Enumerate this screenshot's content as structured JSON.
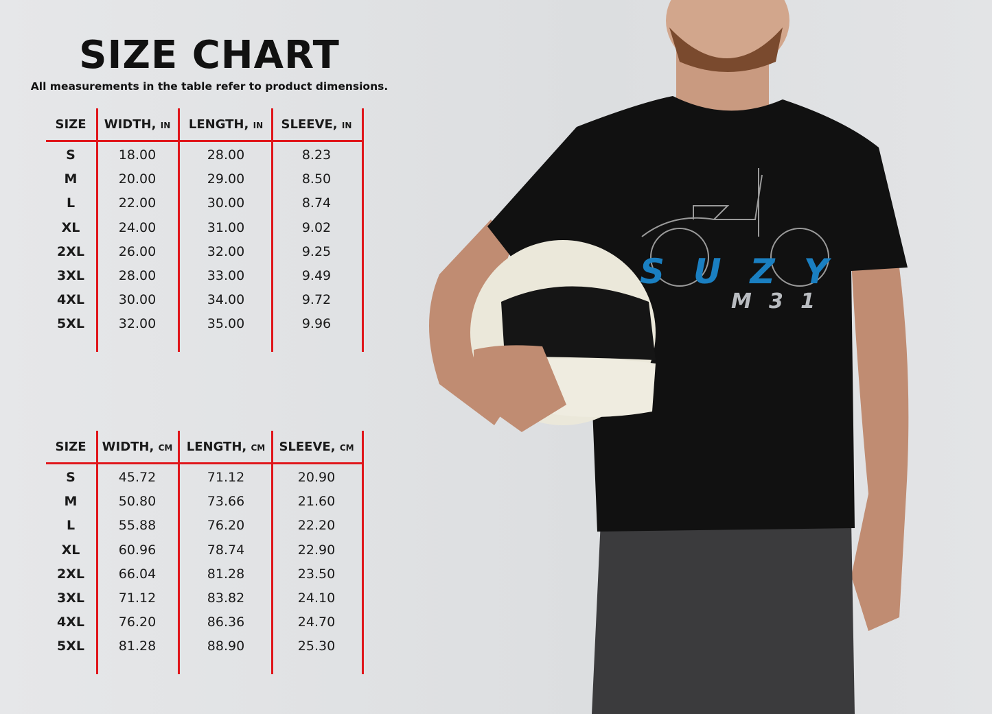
{
  "header": {
    "title": "SIZE CHART",
    "subtitle": "All measurements in the table refer to product dimensions."
  },
  "colors": {
    "divider": "#e0161b",
    "shirt": "#111111",
    "print_blue": "#1a7fc1"
  },
  "tables": [
    {
      "columns": [
        {
          "label": "SIZE",
          "unit": ""
        },
        {
          "label": "WIDTH,",
          "unit": "IN"
        },
        {
          "label": "LENGTH,",
          "unit": "IN"
        },
        {
          "label": "SLEEVE,",
          "unit": "IN"
        }
      ],
      "rows": [
        [
          "S",
          "18.00",
          "28.00",
          "8.23"
        ],
        [
          "M",
          "20.00",
          "29.00",
          "8.50"
        ],
        [
          "L",
          "22.00",
          "30.00",
          "8.74"
        ],
        [
          "XL",
          "24.00",
          "31.00",
          "9.02"
        ],
        [
          "2XL",
          "26.00",
          "32.00",
          "9.25"
        ],
        [
          "3XL",
          "28.00",
          "33.00",
          "9.49"
        ],
        [
          "4XL",
          "30.00",
          "34.00",
          "9.72"
        ],
        [
          "5XL",
          "32.00",
          "35.00",
          "9.96"
        ]
      ]
    },
    {
      "columns": [
        {
          "label": "SIZE",
          "unit": ""
        },
        {
          "label": "WIDTH,",
          "unit": "CM"
        },
        {
          "label": "LENGTH,",
          "unit": "CM"
        },
        {
          "label": "SLEEVE,",
          "unit": "CM"
        }
      ],
      "rows": [
        [
          "S",
          "45.72",
          "71.12",
          "20.90"
        ],
        [
          "M",
          "50.80",
          "73.66",
          "21.60"
        ],
        [
          "L",
          "55.88",
          "76.20",
          "22.20"
        ],
        [
          "XL",
          "60.96",
          "78.74",
          "22.90"
        ],
        [
          "2XL",
          "66.04",
          "81.28",
          "23.50"
        ],
        [
          "3XL",
          "71.12",
          "83.82",
          "24.10"
        ],
        [
          "4XL",
          "76.20",
          "86.36",
          "24.70"
        ],
        [
          "5XL",
          "81.28",
          "88.90",
          "25.30"
        ]
      ]
    }
  ],
  "photo": {
    "shirt_print_line1": "SUZY",
    "shirt_print_line2": "M31"
  }
}
